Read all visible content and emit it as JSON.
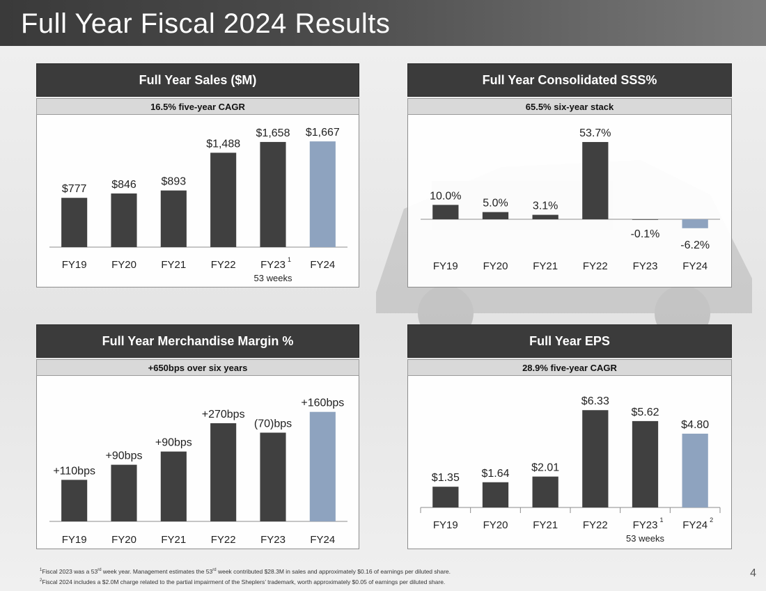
{
  "page": {
    "title": "Full Year Fiscal 2024 Results",
    "page_number": "4",
    "footnotes": [
      {
        "mark": "1",
        "text_a": "Fiscal 2023 was a 53",
        "sup": "rd",
        "text_b": " week year. Management estimates the 53",
        "sup2": "rd",
        "text_c": " week contributed $28.3M in sales and approximately $0.16 of earnings per diluted share."
      },
      {
        "mark": "2",
        "text": "Fiscal 2024 includes a $2.0M charge related to the partial impairment of the Sheplers’ trademark, worth approximately $0.05 of earnings per diluted share."
      }
    ]
  },
  "colors": {
    "bar_dark": "#404040",
    "bar_highlight": "#8ea3bf",
    "axis": "#8c8c8c"
  },
  "chart_data": [
    {
      "type": "bar",
      "title": "Full Year Sales ($M)",
      "subtitle": "16.5% five-year CAGR",
      "categories": [
        "FY19",
        "FY20",
        "FY21",
        "FY22",
        "FY23",
        "FY24"
      ],
      "category_superscripts": [
        "",
        "",
        "",
        "",
        "1",
        ""
      ],
      "category_notes": [
        "",
        "",
        "",
        "",
        "53 weeks",
        ""
      ],
      "values": [
        777,
        846,
        893,
        1488,
        1658,
        1667
      ],
      "labels": [
        "$777",
        "$846",
        "$893",
        "$1,488",
        "$1,658",
        "$1,667"
      ],
      "highlight_index": 5,
      "ylim": [
        0,
        1800
      ]
    },
    {
      "type": "bar",
      "title": "Full Year Consolidated SSS%",
      "subtitle": "65.5% six-year stack",
      "categories": [
        "FY19",
        "FY20",
        "FY21",
        "FY22",
        "FY23",
        "FY24"
      ],
      "category_superscripts": [
        "",
        "",
        "",
        "",
        "",
        ""
      ],
      "category_notes": [
        "",
        "",
        "",
        "",
        "",
        ""
      ],
      "values": [
        10.0,
        5.0,
        3.1,
        53.7,
        -0.1,
        -6.2
      ],
      "labels": [
        "10.0%",
        "5.0%",
        "3.1%",
        "53.7%",
        "-0.1%",
        "-6.2%"
      ],
      "highlight_index": 5,
      "ylim": [
        -10,
        60
      ]
    },
    {
      "type": "bar",
      "title": "Full Year Merchandise Margin %",
      "subtitle": "+650bps over six years",
      "categories": [
        "FY19",
        "FY20",
        "FY21",
        "FY22",
        "FY23",
        "FY24"
      ],
      "category_superscripts": [
        "",
        "",
        "",
        "",
        "",
        ""
      ],
      "category_notes": [
        "",
        "",
        "",
        "",
        "",
        ""
      ],
      "values": [
        110,
        150,
        185,
        260,
        235,
        290
      ],
      "labels": [
        "+110bps",
        "+90bps",
        "+90bps",
        "+270bps",
        "(70)bps",
        "+160bps"
      ],
      "highlight_index": 5,
      "ylim": [
        0,
        330
      ]
    },
    {
      "type": "bar",
      "title": "Full Year EPS",
      "subtitle": "28.9% five-year CAGR",
      "categories": [
        "FY19",
        "FY20",
        "FY21",
        "FY22",
        "FY23",
        "FY24"
      ],
      "category_superscripts": [
        "",
        "",
        "",
        "",
        "1",
        "2"
      ],
      "category_notes": [
        "",
        "",
        "",
        "",
        "53 weeks",
        ""
      ],
      "values": [
        1.35,
        1.64,
        2.01,
        6.33,
        5.62,
        4.8
      ],
      "labels": [
        "$1.35",
        "$1.64",
        "$2.01",
        "$6.33",
        "$5.62",
        "$4.80"
      ],
      "highlight_index": 5,
      "ylim": [
        0,
        7.2
      ]
    }
  ]
}
